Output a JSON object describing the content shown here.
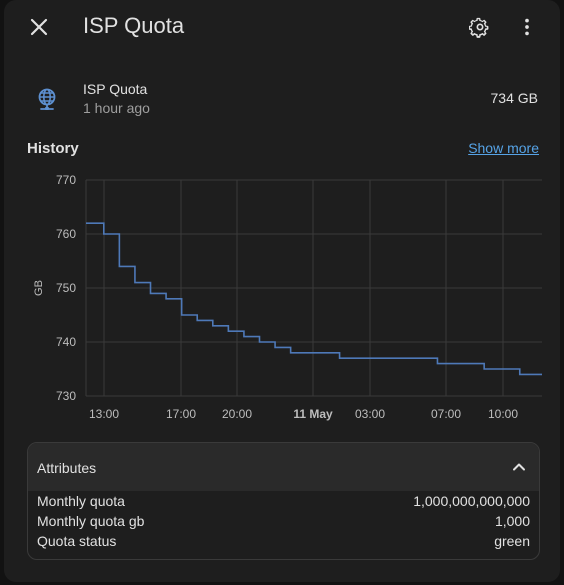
{
  "dialog": {
    "title": "ISP Quota"
  },
  "entity": {
    "name": "ISP Quota",
    "last_changed": "1 hour ago",
    "state": "734 GB"
  },
  "history": {
    "title": "History",
    "show_more": "Show more"
  },
  "chart_data": {
    "type": "line",
    "ylabel": "GB",
    "ylim": [
      730,
      770
    ],
    "yticks": [
      "730",
      "740",
      "750",
      "760",
      "770"
    ],
    "xticks": [
      "13:00",
      "17:00",
      "20:00",
      "11 May",
      "03:00",
      "07:00",
      "10:00"
    ],
    "xticks_bold": [
      "11 May"
    ],
    "grid": true,
    "series": [
      {
        "color": "#4e79b8",
        "step": true,
        "x_hours": [
          0,
          1.6,
          3.0,
          4.4,
          5.8,
          7.2,
          8.6,
          10.0,
          11.4,
          12.8,
          14.2,
          15.6,
          17.0,
          18.4,
          20.0,
          21.4,
          22.8,
          26.6,
          31.6,
          35.8,
          39.0,
          41.0
        ],
        "values": [
          762,
          760,
          754,
          751,
          749,
          748,
          745,
          744,
          743,
          742,
          741,
          740,
          739,
          738,
          738,
          738,
          737,
          737,
          736,
          735,
          734,
          734
        ]
      }
    ]
  },
  "attributes": {
    "title": "Attributes",
    "rows": [
      {
        "key": "Monthly quota",
        "value": "1,000,000,000,000"
      },
      {
        "key": "Monthly quota gb",
        "value": "1,000"
      },
      {
        "key": "Quota status",
        "value": "green"
      }
    ]
  }
}
